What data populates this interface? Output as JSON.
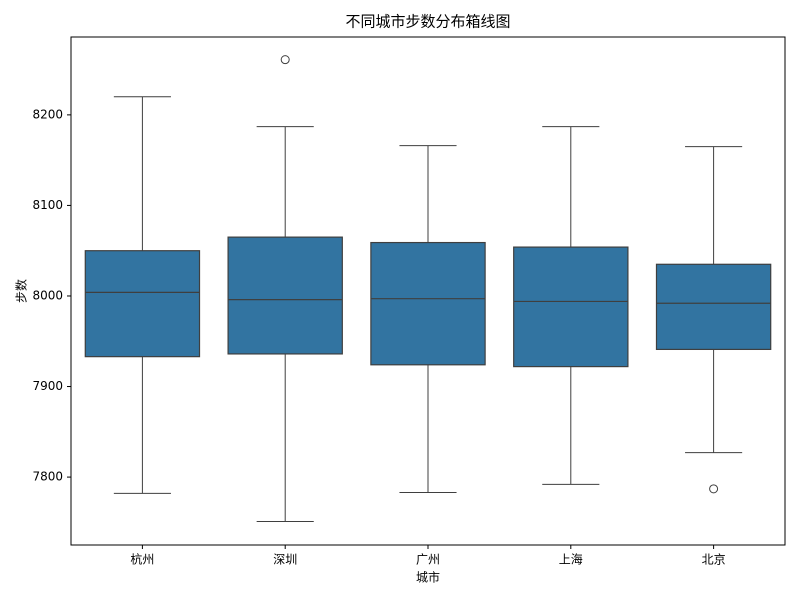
{
  "chart_data": {
    "type": "box",
    "title": "不同城市步数分布箱线图",
    "xlabel": "城市",
    "ylabel": "步数",
    "categories": [
      "杭州",
      "深圳",
      "广州",
      "上海",
      "北京"
    ],
    "color": "#3274a1",
    "boxes": [
      {
        "low": 7782,
        "q1": 7933,
        "median": 8004,
        "q3": 8050,
        "high": 8220,
        "outliers": []
      },
      {
        "low": 7751,
        "q1": 7936,
        "median": 7996,
        "q3": 8065,
        "high": 8187,
        "outliers": [
          8261
        ]
      },
      {
        "low": 7783,
        "q1": 7924,
        "median": 7997,
        "q3": 8059,
        "high": 8166,
        "outliers": []
      },
      {
        "low": 7792,
        "q1": 7922,
        "median": 7994,
        "q3": 8054,
        "high": 8187,
        "outliers": []
      },
      {
        "low": 7827,
        "q1": 7941,
        "median": 7992,
        "q3": 8035,
        "high": 8165,
        "outliers": [
          7787
        ]
      }
    ],
    "ylim": [
      7725,
      8286
    ],
    "yticks": [
      7800,
      7900,
      8000,
      8100,
      8200
    ],
    "grid": false
  }
}
